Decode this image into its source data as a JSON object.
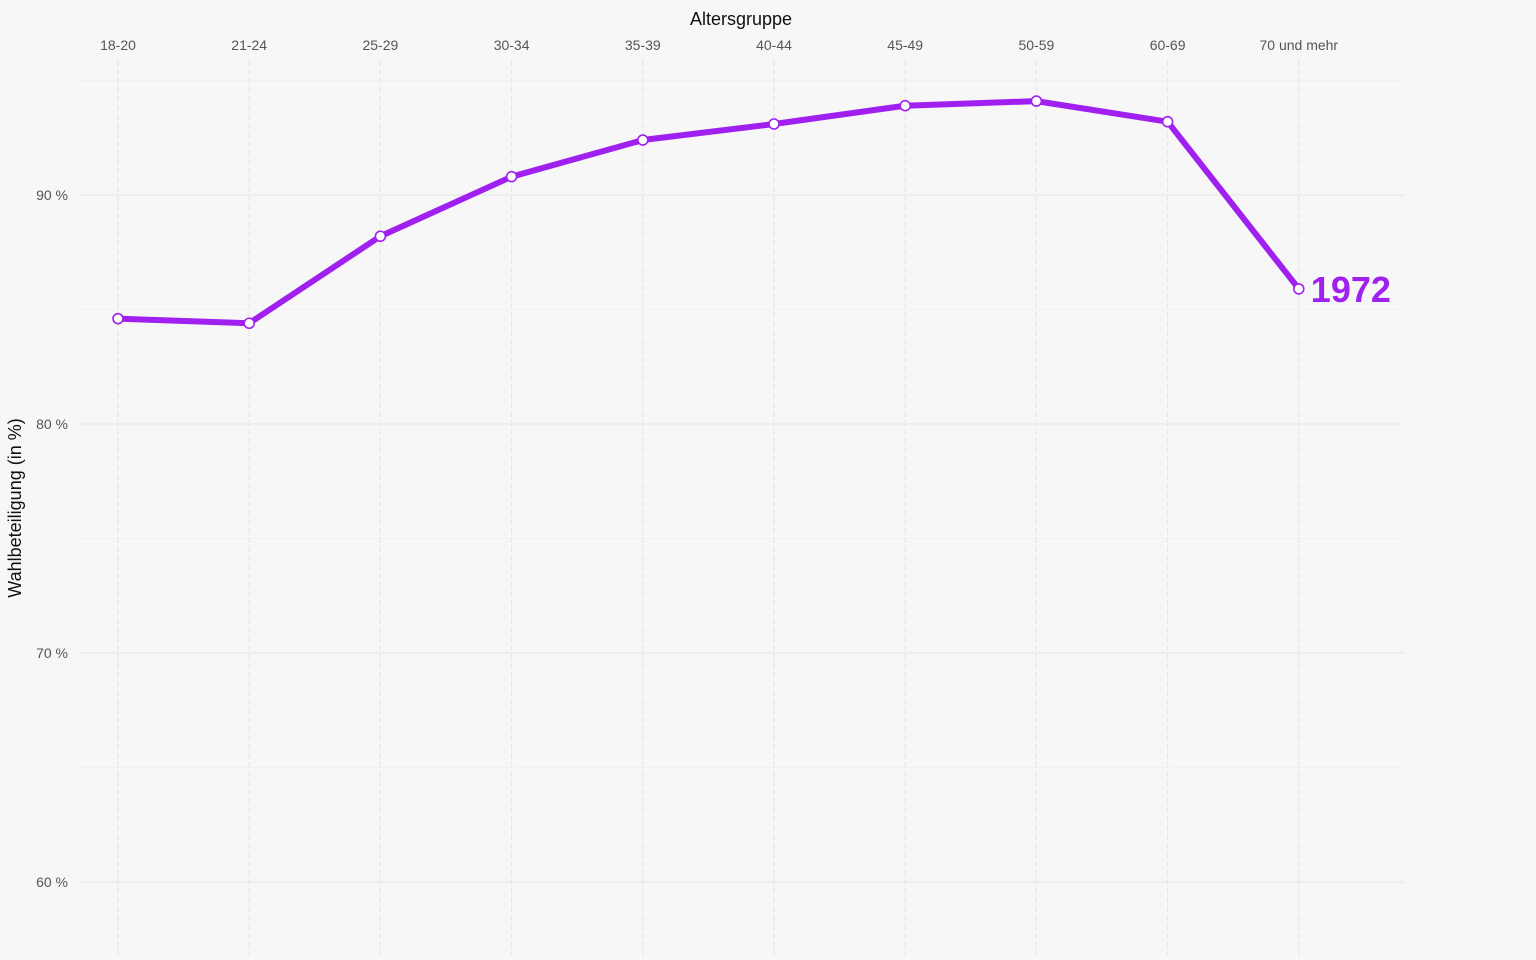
{
  "chart_data": {
    "type": "line",
    "xlabel": "Altersgruppe",
    "ylabel": "Wahlbeteiligung (in %)",
    "categories": [
      "18-20",
      "21-24",
      "25-29",
      "30-34",
      "35-39",
      "40-44",
      "45-49",
      "50-59",
      "60-69",
      "70 und mehr"
    ],
    "ylim": [
      57,
      95
    ],
    "y_ticks": [
      60,
      70,
      80,
      90
    ],
    "y_tick_suffix": " %",
    "x_axis_position": "top",
    "grid": true,
    "series": [
      {
        "name": "1972",
        "color": "#a020f0",
        "values": [
          84.6,
          84.4,
          88.2,
          90.8,
          92.4,
          93.1,
          93.9,
          94.1,
          93.2,
          85.9
        ]
      }
    ]
  }
}
